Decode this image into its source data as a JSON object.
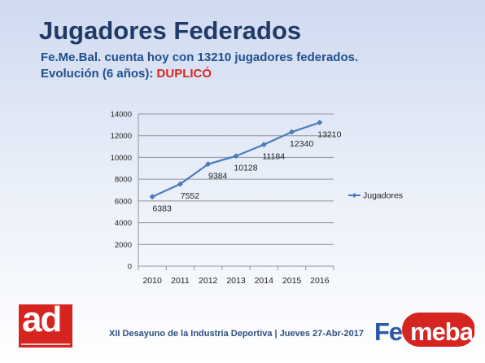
{
  "slide": {
    "title": "Jugadores Federados",
    "subtitle_line1": "Fe.Me.Bal. cuenta hoy con 13210 jugadores federados.",
    "subtitle_line2_prefix": "Evolución (6 años):",
    "subtitle_line2_highlight": "DUPLICÓ",
    "footer": "XII Desayuno de la Industria Deportiva | Jueves 27-Abr-2017"
  },
  "logos": {
    "left_logo": "ad",
    "right_logo_part1": "Fe",
    "right_logo_part2": "mebal"
  },
  "colors": {
    "title": "#1f3b66",
    "subtitle": "#1f4f8f",
    "highlight": "#d6281f",
    "series": "#4a7bbf"
  },
  "chart_data": {
    "type": "line",
    "categories": [
      "2010",
      "2011",
      "2012",
      "2013",
      "2014",
      "2015",
      "2016"
    ],
    "series": [
      {
        "name": "Jugadores",
        "values": [
          6383,
          7552,
          9384,
          10128,
          11184,
          12340,
          13210
        ]
      }
    ],
    "ylim": [
      0,
      14000
    ],
    "yticks": [
      0,
      2000,
      4000,
      6000,
      8000,
      10000,
      12000,
      14000
    ],
    "grid": true,
    "legend": "right",
    "data_labels": true
  }
}
